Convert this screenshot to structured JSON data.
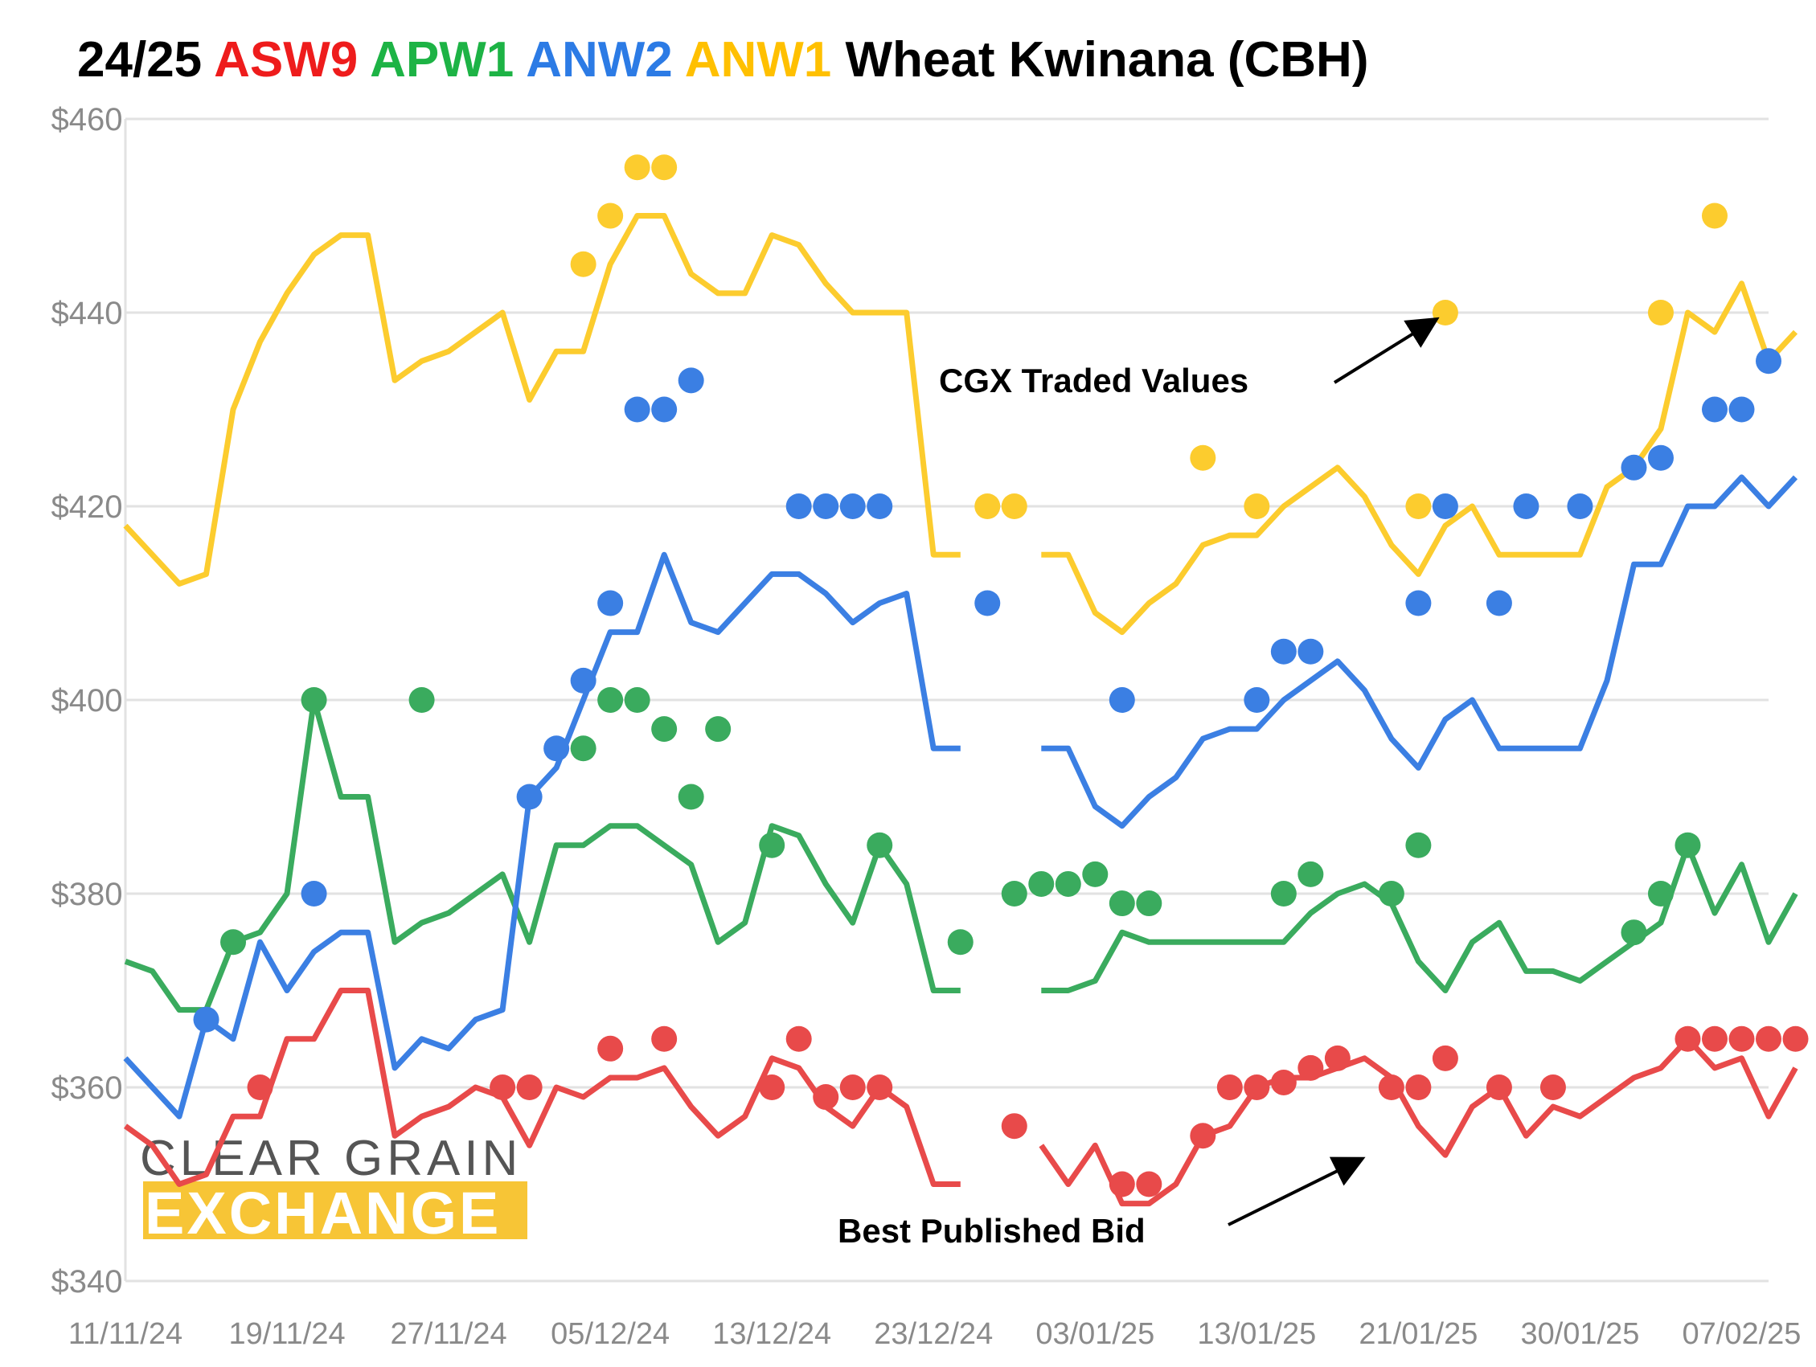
{
  "colors": {
    "ASW9": "#e84a4a",
    "APW1": "#3aab5e",
    "ANW2": "#3b7fe3",
    "ANW1": "#fccc2e",
    "grid": "#e2e2e2",
    "axis_text": "#8a8a8a",
    "title_default": "#000000",
    "title_ASW9": "#ee1c1c",
    "title_APW1": "#1db345",
    "title_ANW2": "#2c7be5",
    "title_ANW1": "#ffc000",
    "logo_bar": "#f7c536"
  },
  "logo": {
    "line1": "CLEAR GRAIN",
    "line2": "EXCHANGE"
  },
  "chart_data": {
    "type": "line",
    "title": "24/25 ASW9 APW1 ANW2 ANW1 Wheat Kwinana (CBH)",
    "title_parts": [
      {
        "text": "24/25 ",
        "color_key": "title_default"
      },
      {
        "text": "ASW9 ",
        "color_key": "title_ASW9"
      },
      {
        "text": "APW1 ",
        "color_key": "title_APW1"
      },
      {
        "text": "ANW2 ",
        "color_key": "title_ANW2"
      },
      {
        "text": "ANW1 ",
        "color_key": "title_ANW1"
      },
      {
        "text": "Wheat Kwinana (CBH)",
        "color_key": "title_default"
      }
    ],
    "xlabel": "",
    "ylabel": "",
    "ylim": [
      340,
      460
    ],
    "y_ticks": [
      340,
      360,
      380,
      400,
      420,
      440,
      460
    ],
    "y_tick_labels": [
      "$340",
      "$360",
      "$380",
      "$400",
      "$420",
      "$440",
      "$460"
    ],
    "x_range": [
      0,
      61
    ],
    "x_ticks": [
      0,
      6,
      12,
      18,
      24,
      30,
      36,
      42,
      48,
      54,
      60
    ],
    "x_tick_labels": [
      "11/11/24",
      "19/11/24",
      "27/11/24",
      "05/12/24",
      "13/12/24",
      "23/12/24",
      "03/01/25",
      "13/01/25",
      "21/01/25",
      "30/01/25",
      "07/02/25"
    ],
    "grid": true,
    "annotations": [
      {
        "text": "CGX Traded Values",
        "points_to": {
          "x": 49,
          "y": 440
        }
      },
      {
        "text": "Best Published Bid",
        "points_to": {
          "x": 46,
          "y": 353
        }
      }
    ],
    "bid_series": [
      {
        "name": "ASW9",
        "color_key": "ASW9",
        "y": [
          356,
          354,
          350,
          351,
          357,
          357,
          365,
          365,
          370,
          370,
          355,
          357,
          358,
          360,
          359,
          354,
          360,
          359,
          361,
          361,
          362,
          358,
          355,
          357,
          363,
          362,
          358,
          356,
          360,
          358,
          350,
          350,
          null,
          null,
          354,
          350,
          354,
          348,
          348,
          350,
          355,
          356,
          360,
          361,
          361,
          362,
          363,
          361,
          356,
          353,
          358,
          360,
          355,
          358,
          357,
          359,
          361,
          362,
          365,
          362,
          363,
          357,
          362
        ]
      },
      {
        "name": "APW1",
        "color_key": "APW1",
        "y": [
          373,
          372,
          368,
          368,
          375,
          376,
          380,
          400,
          390,
          390,
          375,
          377,
          378,
          380,
          382,
          375,
          385,
          385,
          387,
          387,
          385,
          383,
          375,
          377,
          387,
          386,
          381,
          377,
          385,
          381,
          370,
          370,
          null,
          null,
          370,
          370,
          371,
          376,
          375,
          375,
          375,
          375,
          375,
          375,
          378,
          380,
          381,
          379,
          373,
          370,
          375,
          377,
          372,
          372,
          371,
          373,
          375,
          377,
          385,
          378,
          383,
          375,
          380
        ]
      },
      {
        "name": "ANW2",
        "color_key": "ANW2",
        "y": [
          363,
          360,
          357,
          367,
          365,
          375,
          370,
          374,
          376,
          376,
          362,
          365,
          364,
          367,
          368,
          390,
          393,
          400,
          407,
          407,
          415,
          408,
          407,
          410,
          413,
          413,
          411,
          408,
          410,
          411,
          395,
          395,
          null,
          null,
          395,
          395,
          389,
          387,
          390,
          392,
          396,
          397,
          397,
          400,
          402,
          404,
          401,
          396,
          393,
          398,
          400,
          395,
          395,
          395,
          395,
          402,
          414,
          414,
          420,
          420,
          423,
          420,
          423
        ]
      },
      {
        "name": "ANW1",
        "color_key": "ANW1",
        "y": [
          418,
          415,
          412,
          413,
          430,
          437,
          442,
          446,
          448,
          448,
          433,
          435,
          436,
          438,
          440,
          431,
          436,
          436,
          445,
          450,
          450,
          444,
          442,
          442,
          448,
          447,
          443,
          440,
          440,
          440,
          415,
          415,
          null,
          null,
          415,
          415,
          409,
          407,
          410,
          412,
          416,
          417,
          417,
          420,
          422,
          424,
          421,
          416,
          413,
          418,
          420,
          415,
          415,
          415,
          415,
          422,
          424,
          428,
          440,
          438,
          443,
          435,
          438
        ]
      }
    ],
    "traded_points": [
      {
        "name": "ASW9",
        "color_key": "ASW9",
        "points": [
          [
            5,
            360
          ],
          [
            14,
            360
          ],
          [
            15,
            360
          ],
          [
            18,
            364
          ],
          [
            20,
            365
          ],
          [
            24,
            360
          ],
          [
            25,
            365
          ],
          [
            26,
            359
          ],
          [
            27,
            360
          ],
          [
            28,
            360
          ],
          [
            33,
            356
          ],
          [
            37,
            350
          ],
          [
            38,
            350
          ],
          [
            40,
            355
          ],
          [
            41,
            360
          ],
          [
            42,
            360
          ],
          [
            43,
            360.5
          ],
          [
            44,
            362
          ],
          [
            45,
            363
          ],
          [
            47,
            360
          ],
          [
            48,
            360
          ],
          [
            49,
            363
          ],
          [
            51,
            360
          ],
          [
            53,
            360
          ],
          [
            58,
            365
          ],
          [
            59,
            365
          ],
          [
            60,
            365
          ],
          [
            61,
            365
          ],
          [
            62,
            365
          ]
        ]
      },
      {
        "name": "APW1",
        "color_key": "APW1",
        "points": [
          [
            4,
            375
          ],
          [
            7,
            400
          ],
          [
            11,
            400
          ],
          [
            17,
            395
          ],
          [
            18,
            400
          ],
          [
            19,
            400
          ],
          [
            20,
            397
          ],
          [
            21,
            390
          ],
          [
            22,
            397
          ],
          [
            24,
            385
          ],
          [
            28,
            385
          ],
          [
            31,
            375
          ],
          [
            33,
            380
          ],
          [
            34,
            381
          ],
          [
            35,
            381
          ],
          [
            36,
            382
          ],
          [
            37,
            379
          ],
          [
            38,
            379
          ],
          [
            43,
            380
          ],
          [
            44,
            382
          ],
          [
            47,
            380
          ],
          [
            48,
            385
          ],
          [
            56,
            376
          ],
          [
            57,
            380
          ],
          [
            58,
            385
          ]
        ]
      },
      {
        "name": "ANW2",
        "color_key": "ANW2",
        "points": [
          [
            3,
            367
          ],
          [
            7,
            380
          ],
          [
            15,
            390
          ],
          [
            16,
            395
          ],
          [
            17,
            402
          ],
          [
            18,
            410
          ],
          [
            19,
            430
          ],
          [
            20,
            430
          ],
          [
            21,
            433
          ],
          [
            25,
            420
          ],
          [
            26,
            420
          ],
          [
            27,
            420
          ],
          [
            28,
            420
          ],
          [
            32,
            410
          ],
          [
            37,
            400
          ],
          [
            42,
            400
          ],
          [
            43,
            405
          ],
          [
            44,
            405
          ],
          [
            48,
            410
          ],
          [
            49,
            420
          ],
          [
            51,
            410
          ],
          [
            52,
            420
          ],
          [
            54,
            420
          ],
          [
            56,
            424
          ],
          [
            57,
            425
          ],
          [
            59,
            430
          ],
          [
            60,
            430
          ],
          [
            61,
            435
          ]
        ]
      },
      {
        "name": "ANW1",
        "color_key": "ANW1",
        "points": [
          [
            17,
            445
          ],
          [
            18,
            450
          ],
          [
            19,
            455
          ],
          [
            20,
            455
          ],
          [
            32,
            420
          ],
          [
            33,
            420
          ],
          [
            40,
            425
          ],
          [
            42,
            420
          ],
          [
            48,
            420
          ],
          [
            49,
            440
          ],
          [
            57,
            440
          ],
          [
            59,
            450
          ]
        ]
      }
    ]
  }
}
